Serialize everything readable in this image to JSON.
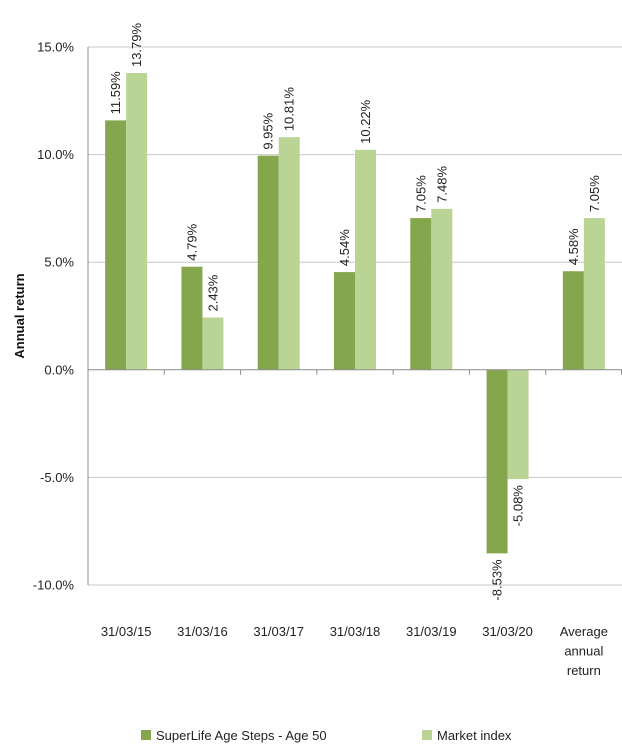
{
  "chart_data": {
    "type": "bar",
    "title": "",
    "xlabel": "",
    "ylabel": "Annual return",
    "ylim": [
      -10,
      15
    ],
    "yticks": [
      "15.0%",
      "10.0%",
      "5.0%",
      "0.0%",
      "-5.0%",
      "-10.0%"
    ],
    "ytick_values": [
      15,
      10,
      5,
      0,
      -5,
      -10
    ],
    "grid": true,
    "legend_position": "bottom",
    "categories": [
      [
        "31/03/15"
      ],
      [
        "31/03/16"
      ],
      [
        "31/03/17"
      ],
      [
        "31/03/18"
      ],
      [
        "31/03/19"
      ],
      [
        "31/03/20"
      ],
      [
        "Average",
        "annual",
        "return"
      ]
    ],
    "series": [
      {
        "name": "SuperLife Age Steps - Age 50",
        "color": "#84a64c",
        "values": [
          11.59,
          4.79,
          9.95,
          4.54,
          7.05,
          -8.53,
          4.58
        ],
        "labels": [
          "11.59%",
          "4.79%",
          "9.95%",
          "4.54%",
          "7.05%",
          "-8.53%",
          "4.58%"
        ]
      },
      {
        "name": "Market index",
        "color": "#b9d495",
        "values": [
          13.79,
          2.43,
          10.81,
          10.22,
          7.48,
          -5.08,
          7.05
        ],
        "labels": [
          "13.79%",
          "2.43%",
          "10.81%",
          "10.22%",
          "7.48%",
          "-5.08%",
          "7.05%"
        ]
      }
    ]
  }
}
